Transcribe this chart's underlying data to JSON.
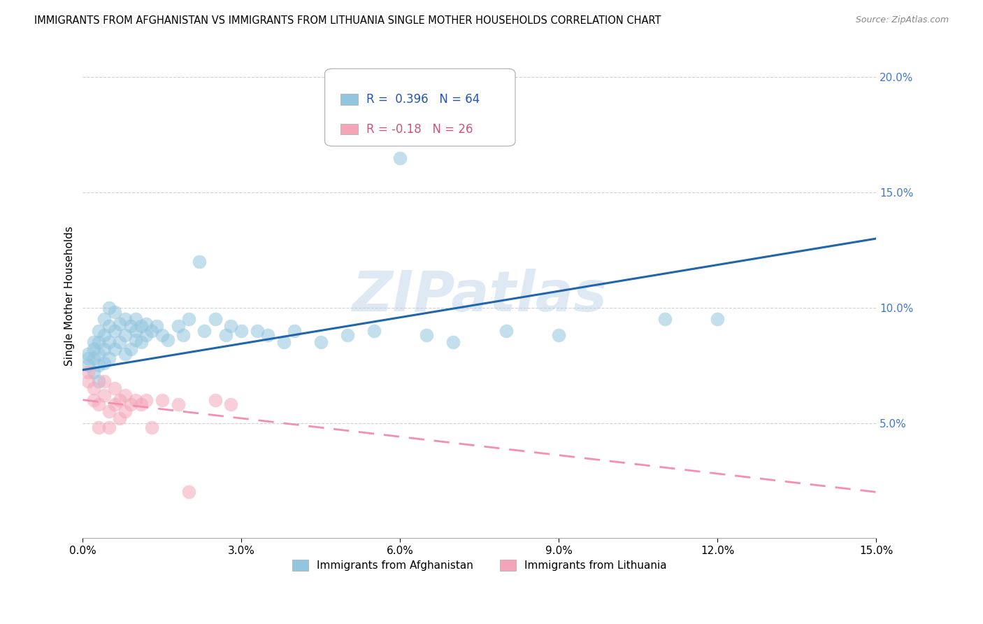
{
  "title": "IMMIGRANTS FROM AFGHANISTAN VS IMMIGRANTS FROM LITHUANIA SINGLE MOTHER HOUSEHOLDS CORRELATION CHART",
  "source": "Source: ZipAtlas.com",
  "ylabel": "Single Mother Households",
  "xlabel_blue": "Immigrants from Afghanistan",
  "xlabel_pink": "Immigrants from Lithuania",
  "watermark": "ZIPatlas",
  "xlim": [
    0.0,
    0.15
  ],
  "ylim": [
    0.0,
    0.21
  ],
  "yticks": [
    0.05,
    0.1,
    0.15,
    0.2
  ],
  "xticks": [
    0.0,
    0.03,
    0.06,
    0.09,
    0.12,
    0.15
  ],
  "R_blue": 0.396,
  "N_blue": 64,
  "R_pink": -0.18,
  "N_pink": 26,
  "color_blue": "#92c5de",
  "color_pink": "#f4a6b8",
  "line_blue": "#2166ac",
  "line_pink": "#f48fb1",
  "blue_line_y0": 0.073,
  "blue_line_y1": 0.13,
  "pink_line_y0": 0.06,
  "pink_line_y1": 0.02,
  "blue_x": [
    0.001,
    0.001,
    0.001,
    0.002,
    0.002,
    0.002,
    0.002,
    0.003,
    0.003,
    0.003,
    0.003,
    0.003,
    0.004,
    0.004,
    0.004,
    0.004,
    0.005,
    0.005,
    0.005,
    0.005,
    0.006,
    0.006,
    0.006,
    0.007,
    0.007,
    0.008,
    0.008,
    0.008,
    0.009,
    0.009,
    0.01,
    0.01,
    0.01,
    0.011,
    0.011,
    0.012,
    0.012,
    0.013,
    0.014,
    0.015,
    0.016,
    0.018,
    0.019,
    0.02,
    0.022,
    0.023,
    0.025,
    0.027,
    0.028,
    0.03,
    0.033,
    0.035,
    0.038,
    0.04,
    0.045,
    0.05,
    0.055,
    0.06,
    0.065,
    0.07,
    0.08,
    0.09,
    0.11,
    0.12
  ],
  "blue_y": [
    0.075,
    0.078,
    0.08,
    0.072,
    0.078,
    0.082,
    0.085,
    0.068,
    0.075,
    0.08,
    0.085,
    0.09,
    0.076,
    0.082,
    0.088,
    0.095,
    0.078,
    0.085,
    0.092,
    0.1,
    0.082,
    0.09,
    0.098,
    0.085,
    0.093,
    0.08,
    0.088,
    0.095,
    0.082,
    0.092,
    0.086,
    0.09,
    0.095,
    0.085,
    0.092,
    0.088,
    0.093,
    0.09,
    0.092,
    0.088,
    0.086,
    0.092,
    0.088,
    0.095,
    0.12,
    0.09,
    0.095,
    0.088,
    0.092,
    0.09,
    0.09,
    0.088,
    0.085,
    0.09,
    0.085,
    0.088,
    0.09,
    0.165,
    0.088,
    0.085,
    0.09,
    0.088,
    0.095,
    0.095
  ],
  "pink_x": [
    0.001,
    0.001,
    0.002,
    0.002,
    0.003,
    0.003,
    0.004,
    0.004,
    0.005,
    0.005,
    0.006,
    0.006,
    0.007,
    0.007,
    0.008,
    0.008,
    0.009,
    0.01,
    0.011,
    0.012,
    0.013,
    0.015,
    0.018,
    0.02,
    0.025,
    0.028
  ],
  "pink_y": [
    0.068,
    0.072,
    0.06,
    0.065,
    0.048,
    0.058,
    0.062,
    0.068,
    0.048,
    0.055,
    0.058,
    0.065,
    0.052,
    0.06,
    0.055,
    0.062,
    0.058,
    0.06,
    0.058,
    0.06,
    0.048,
    0.06,
    0.058,
    0.02,
    0.06,
    0.058
  ]
}
